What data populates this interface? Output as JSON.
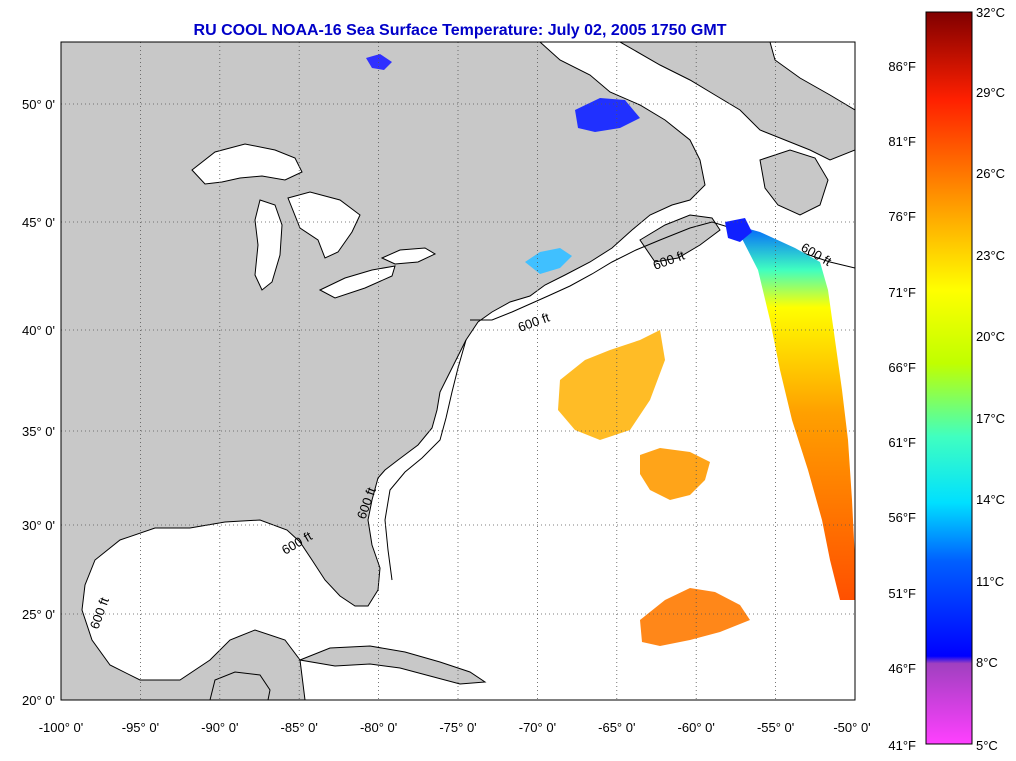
{
  "title": "RU COOL  NOAA-16  Sea Surface Temperature:  July 02, 2005 1750 GMT",
  "map": {
    "lon_range": [
      -100,
      -50
    ],
    "lat_range": [
      20,
      52
    ],
    "lon_ticks": [
      {
        "value": -100,
        "label": "-100° 0'"
      },
      {
        "value": -95,
        "label": "-95° 0'"
      },
      {
        "value": -90,
        "label": "-90° 0'"
      },
      {
        "value": -85,
        "label": "-85° 0'"
      },
      {
        "value": -80,
        "label": "-80° 0'"
      },
      {
        "value": -75,
        "label": "-75° 0'"
      },
      {
        "value": -70,
        "label": "-70° 0'"
      },
      {
        "value": -65,
        "label": "-65° 0'"
      },
      {
        "value": -60,
        "label": "-60° 0'"
      },
      {
        "value": -55,
        "label": "-55° 0'"
      },
      {
        "value": -50,
        "label": "-50° 0'"
      }
    ],
    "lat_ticks": [
      {
        "value": 20,
        "label": "20° 0'"
      },
      {
        "value": 25,
        "label": "25° 0'"
      },
      {
        "value": 30,
        "label": "30° 0'"
      },
      {
        "value": 35,
        "label": "35° 0'"
      },
      {
        "value": 40,
        "label": "40° 0'"
      },
      {
        "value": 45,
        "label": "45° 0'"
      },
      {
        "value": 50,
        "label": "50° 0'"
      }
    ],
    "contour_label": "600 ft",
    "land_color": "#c8c8c8",
    "water_color": "#ffffff"
  },
  "colorbar": {
    "celsius": [
      {
        "value": 5,
        "label": "5°C"
      },
      {
        "value": 8,
        "label": "8°C"
      },
      {
        "value": 11,
        "label": "11°C"
      },
      {
        "value": 14,
        "label": "14°C"
      },
      {
        "value": 17,
        "label": "17°C"
      },
      {
        "value": 20,
        "label": "20°C"
      },
      {
        "value": 23,
        "label": "23°C"
      },
      {
        "value": 26,
        "label": "26°C"
      },
      {
        "value": 29,
        "label": "29°C"
      },
      {
        "value": 32,
        "label": "32°C"
      }
    ],
    "fahrenheit": [
      {
        "value": 41,
        "label": "41°F"
      },
      {
        "value": 46,
        "label": "46°F"
      },
      {
        "value": 51,
        "label": "51°F"
      },
      {
        "value": 56,
        "label": "56°F"
      },
      {
        "value": 61,
        "label": "61°F"
      },
      {
        "value": 66,
        "label": "66°F"
      },
      {
        "value": 71,
        "label": "71°F"
      },
      {
        "value": 76,
        "label": "76°F"
      },
      {
        "value": 81,
        "label": "81°F"
      },
      {
        "value": 86,
        "label": "86°F"
      }
    ],
    "colors": [
      "#ff40ff",
      "#a040c0",
      "#0000ff",
      "#0080ff",
      "#00e0ff",
      "#40ffc0",
      "#c0ff00",
      "#ffff00",
      "#ff9000",
      "#ff2000",
      "#800000"
    ]
  }
}
